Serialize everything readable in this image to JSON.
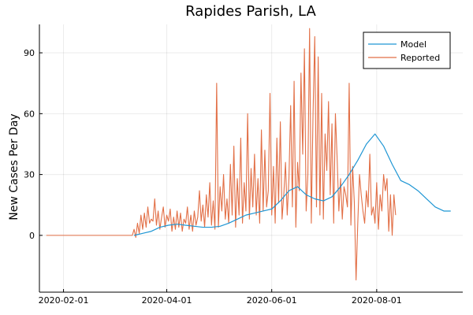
{
  "chart_data": {
    "type": "line",
    "title": "Rapides Parish, LA",
    "xlabel": "",
    "ylabel": "New Cases Per Day",
    "x_ticks": [
      "2020-02-01",
      "2020-04-01",
      "2020-06-01",
      "2020-08-01"
    ],
    "y_ticks": [
      0,
      30,
      60,
      90
    ],
    "xlim": [
      "2020-01-18",
      "2020-09-20"
    ],
    "ylim": [
      -28,
      104
    ],
    "grid": true,
    "legend_position": "top-right",
    "series": [
      {
        "name": "Model",
        "color": "#1f96d4",
        "points": [
          [
            "2020-03-13",
            0
          ],
          [
            "2020-03-18",
            1
          ],
          [
            "2020-03-23",
            2
          ],
          [
            "2020-03-28",
            4
          ],
          [
            "2020-04-02",
            5
          ],
          [
            "2020-04-07",
            5.5
          ],
          [
            "2020-04-12",
            5
          ],
          [
            "2020-04-17",
            4.5
          ],
          [
            "2020-04-22",
            4
          ],
          [
            "2020-04-27",
            4
          ],
          [
            "2020-05-02",
            4.5
          ],
          [
            "2020-05-07",
            6
          ],
          [
            "2020-05-12",
            8
          ],
          [
            "2020-05-17",
            10
          ],
          [
            "2020-05-22",
            11
          ],
          [
            "2020-05-27",
            12
          ],
          [
            "2020-06-01",
            13
          ],
          [
            "2020-06-06",
            17
          ],
          [
            "2020-06-11",
            22
          ],
          [
            "2020-06-16",
            24
          ],
          [
            "2020-06-21",
            20
          ],
          [
            "2020-06-26",
            18
          ],
          [
            "2020-07-01",
            17
          ],
          [
            "2020-07-06",
            19
          ],
          [
            "2020-07-11",
            24
          ],
          [
            "2020-07-16",
            30
          ],
          [
            "2020-07-21",
            37
          ],
          [
            "2020-07-26",
            45
          ],
          [
            "2020-07-31",
            50
          ],
          [
            "2020-08-05",
            44
          ],
          [
            "2020-08-10",
            35
          ],
          [
            "2020-08-15",
            27
          ],
          [
            "2020-08-20",
            25
          ],
          [
            "2020-08-25",
            22
          ],
          [
            "2020-08-30",
            18
          ],
          [
            "2020-09-04",
            14
          ],
          [
            "2020-09-09",
            12
          ],
          [
            "2020-09-13",
            12
          ]
        ]
      },
      {
        "name": "Reported",
        "color": "#e26f46",
        "start": "2020-01-22",
        "values": [
          0,
          0,
          0,
          0,
          0,
          0,
          0,
          0,
          0,
          0,
          0,
          0,
          0,
          0,
          0,
          0,
          0,
          0,
          0,
          0,
          0,
          0,
          0,
          0,
          0,
          0,
          0,
          0,
          0,
          0,
          0,
          0,
          0,
          0,
          0,
          0,
          0,
          0,
          0,
          0,
          0,
          0,
          0,
          0,
          0,
          0,
          0,
          0,
          0,
          0,
          0,
          3,
          -1,
          6,
          1,
          10,
          3,
          11,
          4,
          14,
          6,
          8,
          7,
          18,
          5,
          12,
          3,
          9,
          14,
          4,
          10,
          7,
          13,
          2,
          9,
          3,
          12,
          4,
          11,
          2,
          8,
          6,
          14,
          3,
          10,
          2,
          12,
          5,
          9,
          22,
          7,
          15,
          4,
          20,
          9,
          26,
          5,
          17,
          3,
          75,
          4,
          24,
          12,
          30,
          8,
          18,
          6,
          35,
          10,
          44,
          4,
          28,
          10,
          48,
          6,
          26,
          12,
          60,
          8,
          33,
          14,
          40,
          10,
          28,
          6,
          52,
          12,
          42,
          14,
          22,
          70,
          10,
          34,
          6,
          48,
          16,
          56,
          8,
          20,
          36,
          10,
          28,
          64,
          14,
          76,
          4,
          36,
          22,
          80,
          40,
          92,
          12,
          30,
          102,
          6,
          60,
          98,
          14,
          88,
          10,
          70,
          8,
          50,
          32,
          66,
          20,
          55,
          6,
          60,
          38,
          12,
          28,
          8,
          24,
          20,
          14,
          75,
          5,
          34,
          16,
          -22,
          6,
          30,
          20,
          12,
          6,
          22,
          14,
          40,
          10,
          14,
          6,
          26,
          3,
          20,
          12,
          30,
          22,
          28,
          2,
          20,
          0,
          20,
          10
        ]
      }
    ]
  }
}
